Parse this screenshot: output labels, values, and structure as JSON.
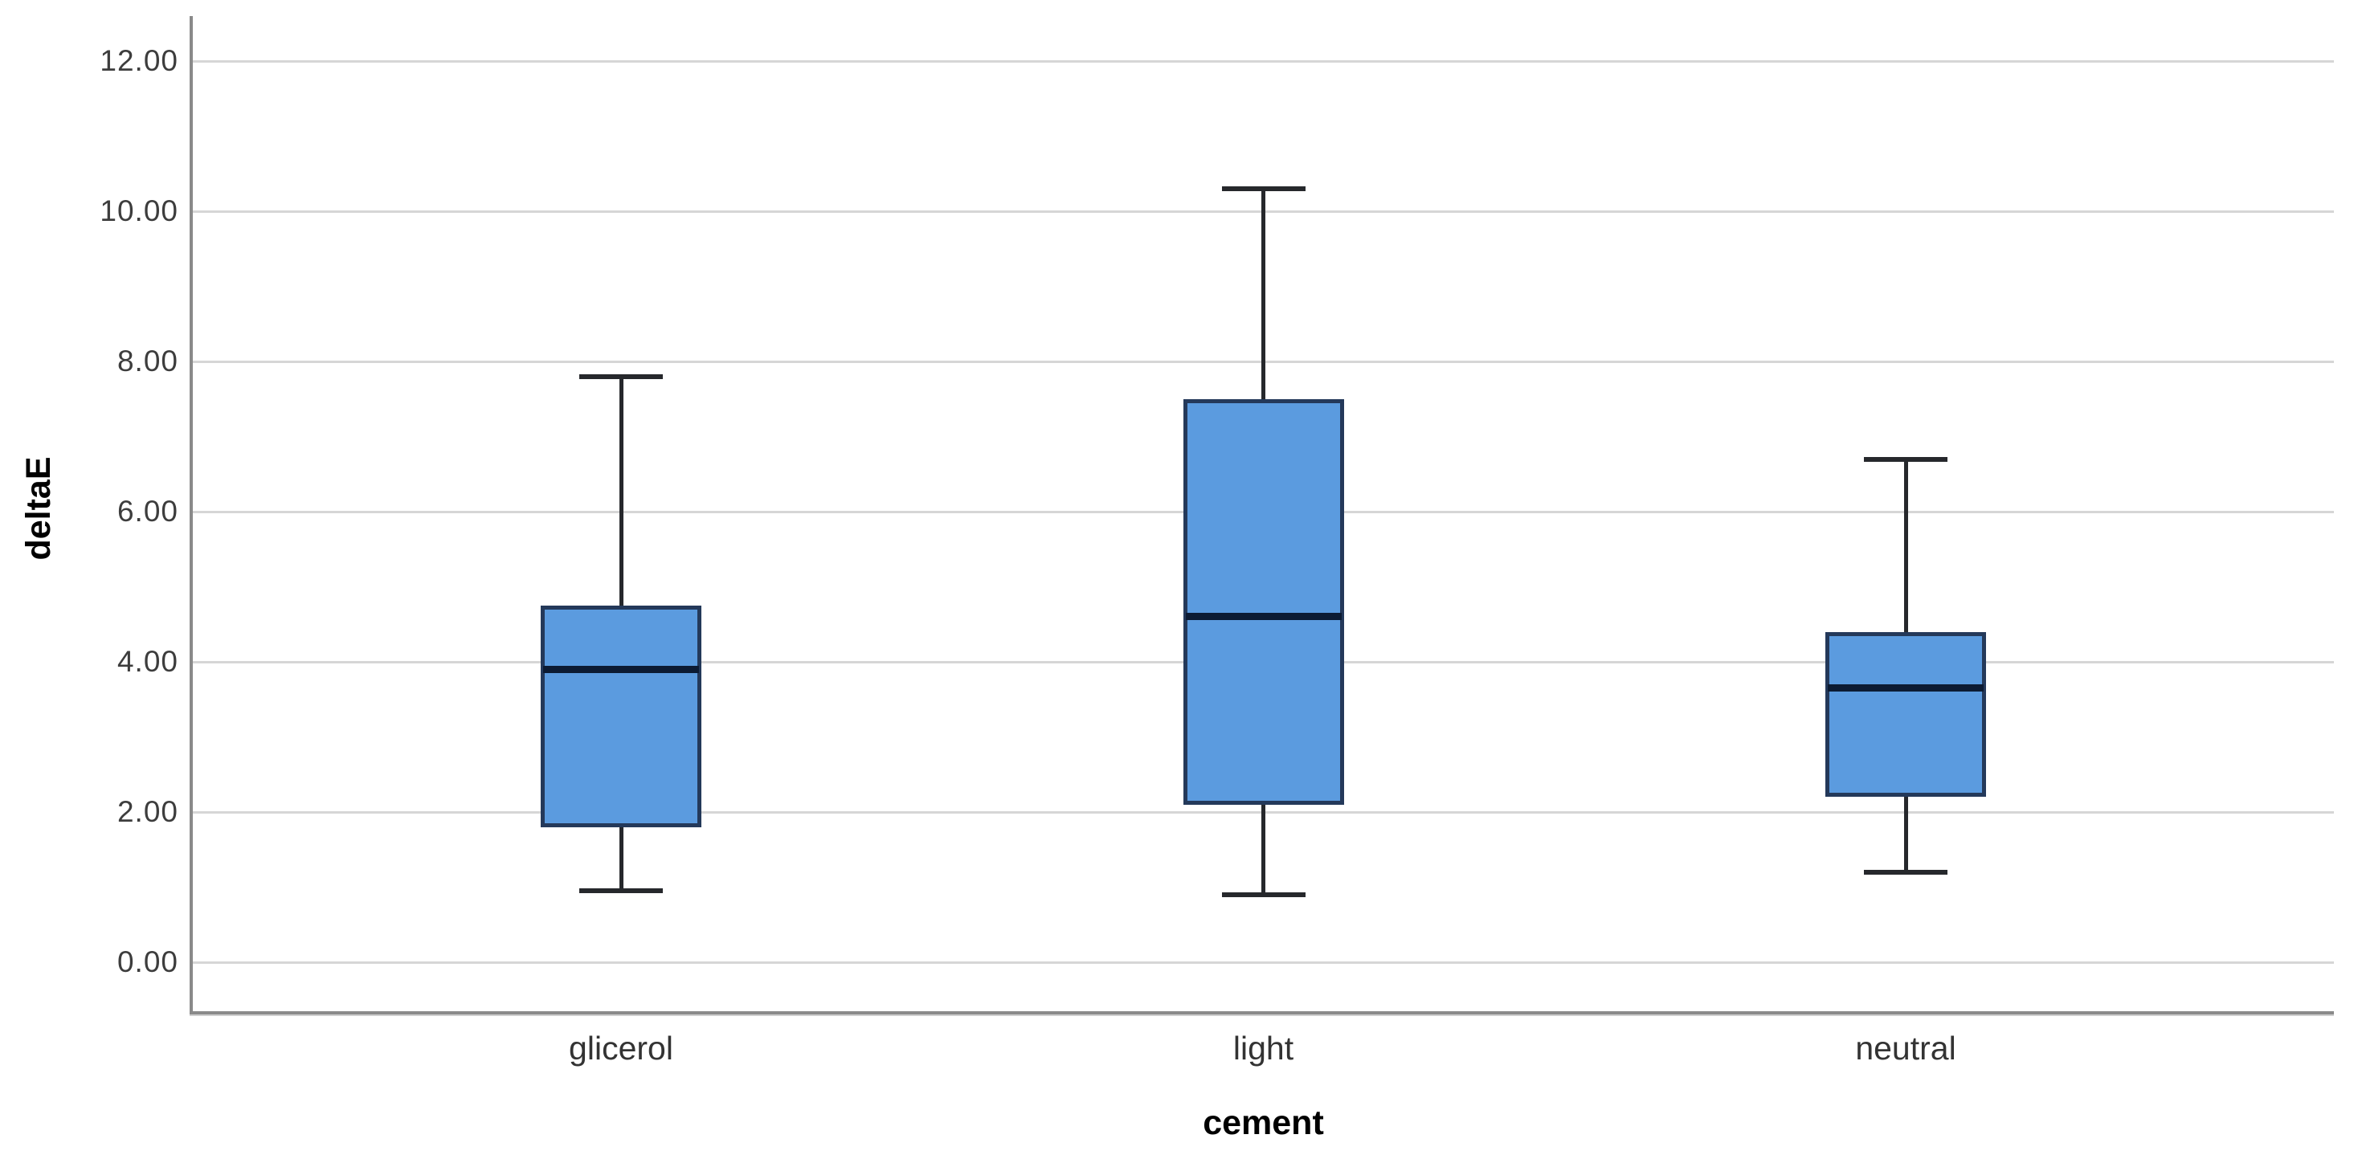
{
  "chart_data": {
    "type": "boxplot",
    "title": "",
    "xlabel": "cement",
    "ylabel": "deltaE",
    "categories": [
      "glicerol",
      "light",
      "neutral"
    ],
    "boxes": [
      {
        "category": "glicerol",
        "whisker_low": 0.95,
        "q1": 1.8,
        "median": 3.9,
        "q3": 4.75,
        "whisker_high": 7.8
      },
      {
        "category": "light",
        "whisker_low": 0.9,
        "q1": 2.1,
        "median": 4.6,
        "q3": 7.5,
        "whisker_high": 10.3
      },
      {
        "category": "neutral",
        "whisker_low": 1.2,
        "q1": 2.2,
        "median": 3.65,
        "q3": 4.4,
        "whisker_high": 6.7
      }
    ],
    "yticks": [
      0,
      2,
      4,
      6,
      8,
      10,
      12
    ],
    "ytick_labels": [
      "0.00",
      "2.00",
      "4.00",
      "6.00",
      "8.00",
      "10.00",
      "12.00"
    ],
    "ylim": [
      -0.7,
      12.6
    ],
    "grid": "horizontal",
    "legend": "none",
    "colors": {
      "box_fill": "#5b9bdf",
      "box_border": "#24395a",
      "median": "#0c1b33",
      "whisker": "#26282c",
      "gridline": "#d6d6d6",
      "axis_line": "#8a8a8a",
      "tick_label": "#3d3d3d",
      "category_label": "#333333",
      "axis_title": "#000000"
    }
  }
}
